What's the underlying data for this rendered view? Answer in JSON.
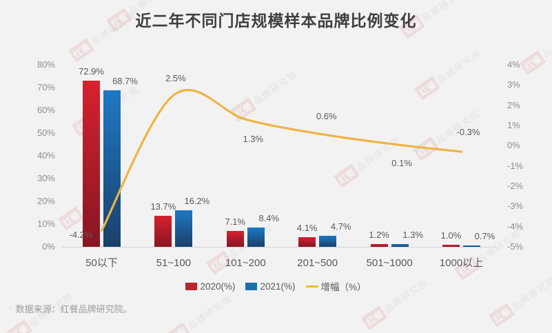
{
  "title": "近二年不同门店规模样本品牌比例变化",
  "footer": {
    "bullet": "·",
    "source": "数据来源：红餐品牌研究院。"
  },
  "branding": {
    "watermark_brand": "红餐",
    "watermark_name": "品牌研究院"
  },
  "legend": {
    "items": [
      {
        "label": "2020(%)",
        "swatch": "#b5282e",
        "type": "square"
      },
      {
        "label": "2021(%)",
        "swatch": "#1e6fad",
        "type": "square"
      },
      {
        "label": "增幅（%）",
        "swatch": "#eeb442",
        "type": "line"
      }
    ]
  },
  "colors": {
    "bar2020_top": "#d7212e",
    "bar2020_bottom": "#871622",
    "bar2021_top": "#1e78c4",
    "bar2021_bottom": "#1a406b",
    "growth_line": "#eeb442",
    "axis_text": "#8c8c8c",
    "value_text": "#595959",
    "background": "#f2f2f3"
  },
  "chart_data": {
    "type": "combo (bar + line)",
    "title": "近二年不同门店规模样本品牌比例变化",
    "categories": [
      "50以下",
      "51~100",
      "101~200",
      "201~500",
      "501~1000",
      "1000以上"
    ],
    "series": [
      {
        "name": "2020(%)",
        "type": "bar",
        "axis": "left",
        "values": [
          72.9,
          13.7,
          7.1,
          4.1,
          1.2,
          1.0
        ]
      },
      {
        "name": "2021(%)",
        "type": "bar",
        "axis": "left",
        "values": [
          68.7,
          16.2,
          8.4,
          4.7,
          1.3,
          0.7
        ]
      },
      {
        "name": "增幅（%）",
        "type": "line",
        "axis": "right",
        "values": [
          -4.2,
          2.5,
          1.3,
          0.6,
          0.1,
          -0.3
        ]
      }
    ],
    "axes": {
      "left": {
        "ticks": [
          "80%",
          "70%",
          "60%",
          "50%",
          "40%",
          "30%",
          "20%",
          "10%",
          "0%"
        ],
        "min": 0,
        "max": 80
      },
      "right": {
        "ticks": [
          "4%",
          "3%",
          "2%",
          "1%",
          "0%",
          "-1%",
          "-2%",
          "-3%",
          "-4%",
          "-5%"
        ],
        "min": -5,
        "max": 4
      }
    },
    "grid": false,
    "value_labels": true,
    "legend_position": "bottom",
    "data_source": "红餐品牌研究院"
  }
}
